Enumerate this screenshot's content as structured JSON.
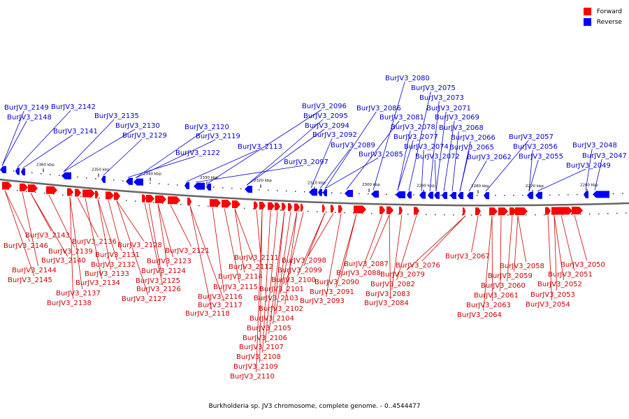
{
  "legend": {
    "forward_label": "Forward",
    "reverse_label": "Reverse",
    "forward_color": "#ff0000",
    "reverse_color": "#0000ff"
  },
  "colors": {
    "backbone": "#666666",
    "forward_label": "#cc0000",
    "reverse_label": "#0000cc"
  },
  "caption": "Burkholderia sp. JV3 chromosome, complete genome. - 0..4544477",
  "scale_ticks": [
    "2360 kbp",
    "2350 kbp",
    "2340 kbp",
    "2330 kbp",
    "2320 kbp",
    "2310 kbp",
    "2300 kbp",
    "2290 kbp",
    "2280 kbp",
    "2270 kbp",
    "2260 kbp"
  ],
  "reverse_genes": [
    "BurJV3_2149",
    "BurJV3_2148",
    "BurJV3_2142",
    "BurJV3_2141",
    "BurJV3_2135",
    "BurJV3_2130",
    "BurJV3_2129",
    "BurJV3_2122",
    "BurJV3_2120",
    "BurJV3_2119",
    "BurJV3_2113",
    "BurJV3_2097",
    "BurJV3_2096",
    "BurJV3_2095",
    "BurJV3_2094",
    "BurJV3_2092",
    "BurJV3_2089",
    "BurJV3_2086",
    "BurJV3_2085",
    "BurJV3_2081",
    "BurJV3_2080",
    "BurJV3_2078",
    "BurJV3_2077",
    "BurJV3_2075",
    "BurJV3_2074",
    "BurJV3_2073",
    "BurJV3_2072",
    "BurJV3_2071",
    "BurJV3_2069",
    "BurJV3_2068",
    "BurJV3_2066",
    "BurJV3_2065",
    "BurJV3_2062",
    "BurJV3_2057",
    "BurJV3_2056",
    "BurJV3_2055",
    "BurJV3_2049",
    "BurJV3_2048",
    "BurJV3_2047"
  ],
  "forward_genes": [
    "BurJV3_2146",
    "BurJV3_2145",
    "BurJV3_2144",
    "BurJV3_2143",
    "BurJV3_2140",
    "BurJV3_2139",
    "BurJV3_2138",
    "BurJV3_2137",
    "BurJV3_2136",
    "BurJV3_2134",
    "BurJV3_2133",
    "BurJV3_2132",
    "BurJV3_2131",
    "BurJV3_2128",
    "BurJV3_2127",
    "BurJV3_2126",
    "BurJV3_2125",
    "BurJV3_2124",
    "BurJV3_2123",
    "BurJV3_2121",
    "BurJV3_2118",
    "BurJV3_2117",
    "BurJV3_2116",
    "BurJV3_2115",
    "BurJV3_2114",
    "BurJV3_2112",
    "BurJV3_2111",
    "BurJV3_2110",
    "BurJV3_2109",
    "BurJV3_2108",
    "BurJV3_2107",
    "BurJV3_2106",
    "BurJV3_2105",
    "BurJV3_2104",
    "BurJV3_2103",
    "BurJV3_2102",
    "BurJV3_2101",
    "BurJV3_2100",
    "BurJV3_2099",
    "BurJV3_2098",
    "BurJV3_2093",
    "BurJV3_2091",
    "BurJV3_2090",
    "BurJV3_2088",
    "BurJV3_2087",
    "BurJV3_2084",
    "BurJV3_2083",
    "BurJV3_2082",
    "BurJV3_2079",
    "BurJV3_2076",
    "BurJV3_2067",
    "BurJV3_2064",
    "BurJV3_2063",
    "BurJV3_2061",
    "BurJV3_2060",
    "BurJV3_2059",
    "BurJV3_2058",
    "BurJV3_2054",
    "BurJV3_2053",
    "BurJV3_2052",
    "BurJV3_2051",
    "BurJV3_2050"
  ]
}
